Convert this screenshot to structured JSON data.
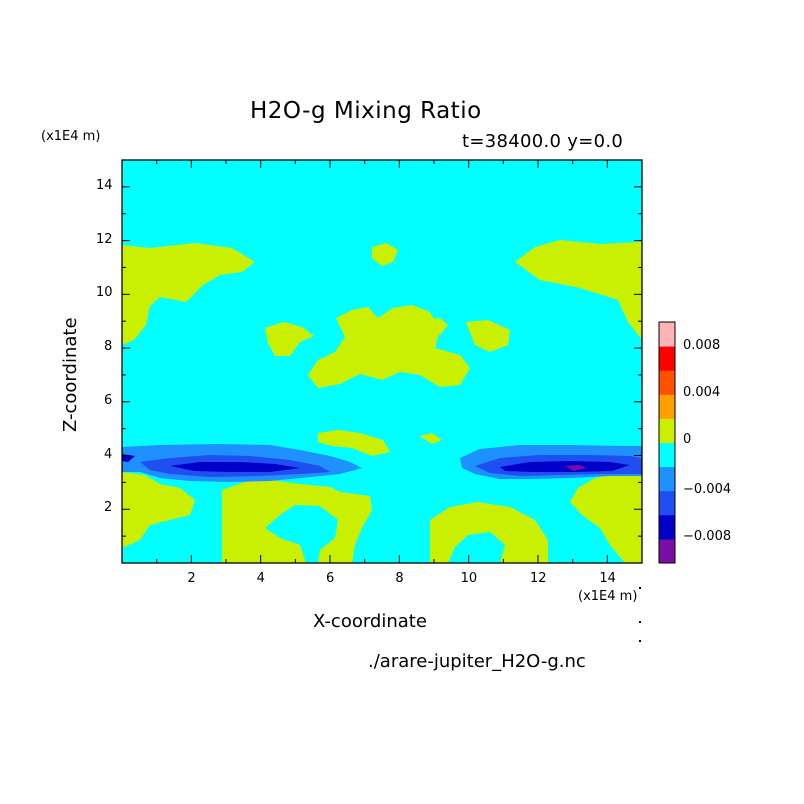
{
  "chart_data": {
    "type": "heatmap",
    "title": "H2O-g Mixing Ratio",
    "subtitle": "t=38400.0 y=0.0",
    "xlabel": "X-coordinate",
    "ylabel": "Z-coordinate",
    "x_unit": "(x1E4 m)",
    "y_unit": "(x1E4 m)",
    "xlim": [
      0,
      15
    ],
    "ylim": [
      0,
      15
    ],
    "x_ticks": [
      2,
      4,
      6,
      8,
      10,
      12,
      14
    ],
    "y_ticks": [
      2,
      4,
      6,
      8,
      10,
      12,
      14
    ],
    "colorbar": {
      "levels": [
        -0.01,
        -0.008,
        -0.006,
        -0.004,
        -0.002,
        0,
        0.002,
        0.004,
        0.006,
        0.008,
        0.01
      ],
      "colors": [
        "#7a0fa8",
        "#0000c8",
        "#1f4ff0",
        "#1e90ff",
        "#00ffff",
        "#c8f000",
        "#ffa000",
        "#ff5000",
        "#ff0000",
        "#ffb4b4"
      ],
      "tick_labels": [
        "0.008",
        "0.004",
        "0",
        "−0.004",
        "−0.008"
      ]
    },
    "regions": {
      "background": "0 to 0.002 (cyan dominant)",
      "positive_patches": "0.002 to 0.004 (yellow-green)",
      "negative_band": "z ~ 3.2 to 4.3, values down to -0.006"
    },
    "source": "./arare-jupiter_H2O-g.nc"
  }
}
